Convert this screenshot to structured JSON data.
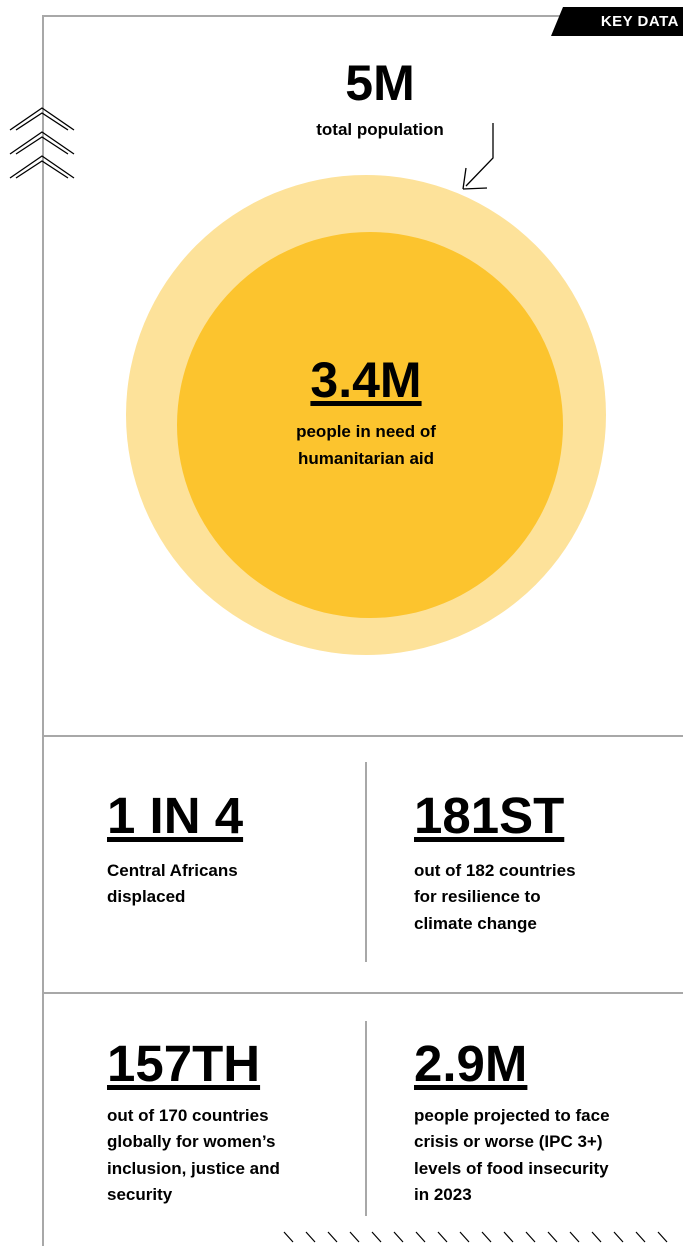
{
  "header": {
    "tag_label": "KEY DATA"
  },
  "population": {
    "value": "5M",
    "label": "total population"
  },
  "in_need": {
    "value": "3.4M",
    "label_line1": "people in need of",
    "label_line2": "humanitarian aid"
  },
  "stats": [
    {
      "value": "1 IN 4",
      "lines": [
        "Central Africans",
        "displaced"
      ]
    },
    {
      "value": "181ST",
      "lines": [
        "out of 182 countries",
        "for resilience to",
        "climate change"
      ]
    },
    {
      "value": "157TH",
      "lines": [
        "out of 170 countries",
        "globally for women’s",
        "inclusion, justice and",
        "security"
      ]
    },
    {
      "value": "2.9M",
      "lines": [
        "people projected to face",
        "crisis or worse (IPC 3+)",
        "levels of food insecurity",
        "in 2023"
      ]
    }
  ],
  "colors": {
    "outer_circle": "#fde29a",
    "inner_circle": "#fcc42e",
    "lines": "#a8a8a8",
    "text": "#000000"
  },
  "icons": [
    "chevrons-up-icon",
    "arrow-down-left-icon",
    "hatch-pattern"
  ]
}
